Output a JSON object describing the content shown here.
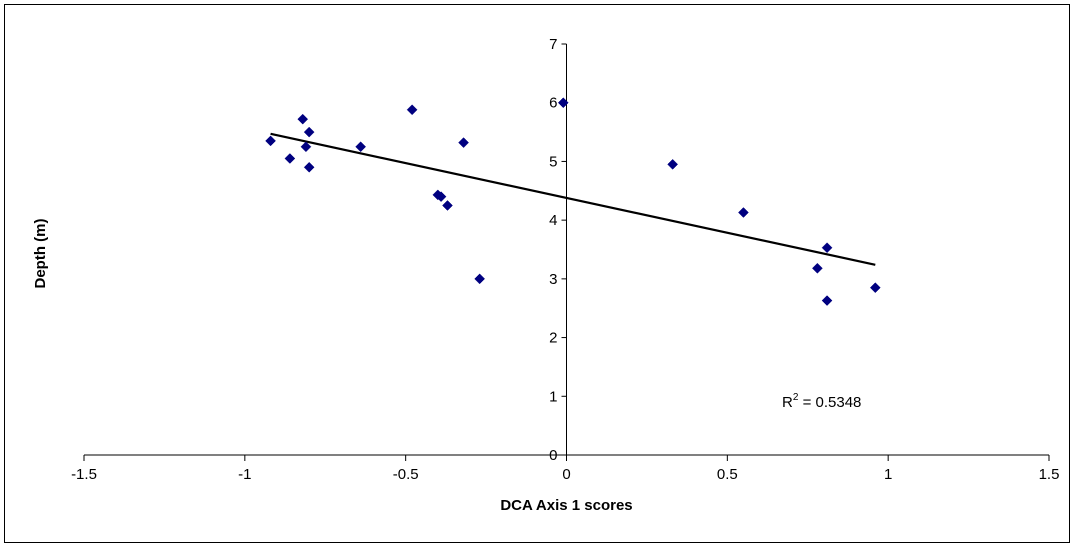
{
  "chart_data": {
    "type": "scatter",
    "title": "",
    "xlabel": "DCA Axis 1 scores",
    "ylabel": "Depth (m)",
    "xlim": [
      -1.5,
      1.5
    ],
    "ylim": [
      0,
      7
    ],
    "x_ticks": [
      -1.5,
      -1,
      -0.5,
      0,
      0.5,
      1,
      1.5
    ],
    "x_tick_labels": [
      "-1.5",
      "-1",
      "-0.5",
      "0",
      "0.5",
      "1",
      "1.5"
    ],
    "y_ticks": [
      0,
      1,
      2,
      3,
      4,
      5,
      6,
      7
    ],
    "y_tick_labels": [
      "0",
      "1",
      "2",
      "3",
      "4",
      "5",
      "6",
      "7"
    ],
    "grid": false,
    "legend": "none",
    "marker": "diamond",
    "marker_color": "#000080",
    "line_color": "#000000",
    "series": [
      {
        "points": [
          {
            "x": -0.92,
            "y": 5.35
          },
          {
            "x": -0.86,
            "y": 5.05
          },
          {
            "x": -0.82,
            "y": 5.72
          },
          {
            "x": -0.81,
            "y": 5.25
          },
          {
            "x": -0.8,
            "y": 5.5
          },
          {
            "x": -0.8,
            "y": 4.9
          },
          {
            "x": -0.64,
            "y": 5.25
          },
          {
            "x": -0.48,
            "y": 5.88
          },
          {
            "x": -0.4,
            "y": 4.43
          },
          {
            "x": -0.39,
            "y": 4.4
          },
          {
            "x": -0.37,
            "y": 4.25
          },
          {
            "x": -0.32,
            "y": 5.32
          },
          {
            "x": -0.27,
            "y": 3.0
          },
          {
            "x": -0.01,
            "y": 6.0
          },
          {
            "x": 0.33,
            "y": 4.95
          },
          {
            "x": 0.55,
            "y": 4.13
          },
          {
            "x": 0.78,
            "y": 3.18
          },
          {
            "x": 0.81,
            "y": 3.53
          },
          {
            "x": 0.81,
            "y": 2.63
          },
          {
            "x": 0.96,
            "y": 2.85
          }
        ]
      }
    ],
    "trendline": {
      "type": "linear",
      "x": [
        -0.92,
        0.96
      ],
      "y": [
        5.47,
        3.24
      ]
    },
    "annotation": {
      "r_label": "R",
      "r_superscript": "2",
      "r_value_text": " = 0.5348",
      "x": 0.67,
      "y": 0.9
    }
  }
}
